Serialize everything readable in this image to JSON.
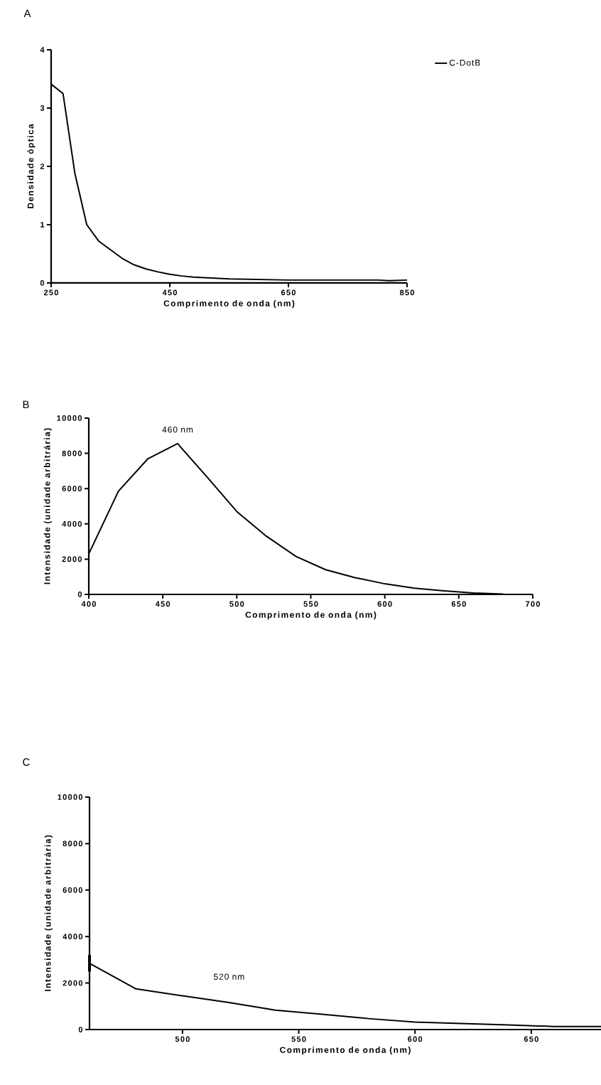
{
  "chart_data": [
    {
      "type": "line",
      "title": "A",
      "xlabel": "Comprimento de onda (nm)",
      "ylabel": "Densidade óptica",
      "legend": "top right",
      "xlim": [
        250,
        850
      ],
      "xticks": [
        250,
        450,
        650,
        850
      ],
      "ylim": [
        0,
        4
      ],
      "yticks": [
        0,
        1,
        2,
        3,
        4
      ],
      "series": [
        {
          "name": "C-DotB",
          "color": "#000000",
          "x": [
            250,
            270,
            290,
            310,
            330,
            350,
            370,
            390,
            410,
            430,
            450,
            470,
            490,
            510,
            530,
            550,
            600,
            650,
            700,
            750,
            800,
            820,
            850
          ],
          "values": [
            3.41,
            3.25,
            1.88,
            1.0,
            0.72,
            0.57,
            0.42,
            0.31,
            0.24,
            0.19,
            0.15,
            0.12,
            0.1,
            0.09,
            0.08,
            0.07,
            0.06,
            0.05,
            0.05,
            0.05,
            0.05,
            0.04,
            0.05
          ]
        }
      ]
    },
    {
      "type": "line",
      "title": "B",
      "xlabel": "Comprimento de onda (nm)",
      "ylabel": "Intensidade (unidade arbitrária)",
      "xlim": [
        400,
        700
      ],
      "xticks": [
        400,
        450,
        500,
        550,
        600,
        650,
        700
      ],
      "ylim": [
        0,
        10000
      ],
      "yticks": [
        0,
        2000,
        4000,
        6000,
        8000,
        10000
      ],
      "annotations": [
        {
          "text": "460 nm",
          "x": 460,
          "y": 8550
        }
      ],
      "series": [
        {
          "color": "#000000",
          "x": [
            400,
            420,
            440,
            460,
            480,
            500,
            520,
            540,
            560,
            580,
            600,
            620,
            640,
            660,
            680
          ],
          "values": [
            2300,
            5850,
            7700,
            8550,
            6650,
            4700,
            3300,
            2150,
            1400,
            950,
            600,
            350,
            200,
            80,
            20
          ]
        }
      ]
    },
    {
      "type": "line",
      "title": "C",
      "xlabel": "Comprimento de onda (nm)",
      "ylabel": "Intensidade (unidade arbitrária)",
      "xlim": [
        460,
        680
      ],
      "xticks": [
        500,
        550,
        600,
        650
      ],
      "ylim": [
        0,
        10000
      ],
      "yticks": [
        0,
        2000,
        4000,
        6000,
        8000,
        10000
      ],
      "annotations": [
        {
          "text": "520 nm",
          "x": 520,
          "y": 1180
        }
      ],
      "series": [
        {
          "color": "#000000",
          "x": [
            460,
            480,
            500,
            520,
            540,
            560,
            580,
            600,
            620,
            640,
            660,
            680
          ],
          "values": [
            2850,
            1750,
            1450,
            1160,
            830,
            660,
            470,
            320,
            260,
            200,
            130,
            130
          ],
          "errors": [
            350,
            null,
            null,
            null,
            null,
            null,
            null,
            null,
            null,
            null,
            null,
            null
          ]
        }
      ]
    }
  ]
}
